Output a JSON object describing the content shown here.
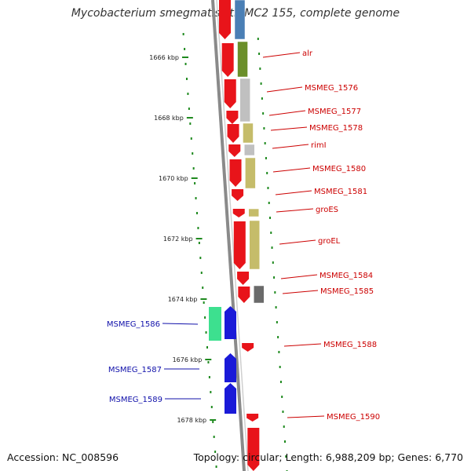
{
  "title": "Mycobacterium smegmatis str. MC2 155, complete genome",
  "accession": "Accession: NC_008596",
  "summary": "Topology: circular; Length: 6,988,209 bp; Genes: 6,770",
  "colors": {
    "forward_gene": "#e8141a",
    "reverse_gene": "#1a1ad8",
    "label_forward": "#cc0000",
    "label_reverse": "#1010aa",
    "backbone": "#8a8a8a",
    "gc_skew": "#1f8a1f",
    "cog_blue": "#4a7fb5",
    "cog_olive": "#6b8f2a",
    "cog_grey": "#c0c0c0",
    "cog_khaki": "#c5bc6a",
    "cog_dark": "#6a6a6a",
    "cog_mint": "#3de08f"
  },
  "ticks": [
    {
      "label": "1666 kbp",
      "kbp": 1666
    },
    {
      "label": "1668 kbp",
      "kbp": 1668
    },
    {
      "label": "1670 kbp",
      "kbp": 1670
    },
    {
      "label": "1672 kbp",
      "kbp": 1672
    },
    {
      "label": "1674 kbp",
      "kbp": 1674
    },
    {
      "label": "1676 kbp",
      "kbp": 1676
    },
    {
      "label": "1678 kbp",
      "kbp": 1678
    }
  ],
  "forward_genes": [
    {
      "name": "alr"
    },
    {
      "name": "MSMEG_1576"
    },
    {
      "name": "MSMEG_1577"
    },
    {
      "name": "MSMEG_1578"
    },
    {
      "name": "rimI"
    },
    {
      "name": "MSMEG_1580"
    },
    {
      "name": "MSMEG_1581"
    },
    {
      "name": "groES"
    },
    {
      "name": "groEL"
    },
    {
      "name": "MSMEG_1584"
    },
    {
      "name": "MSMEG_1585"
    },
    {
      "name": "MSMEG_1588"
    },
    {
      "name": "MSMEG_1590"
    }
  ],
  "reverse_genes": [
    {
      "name": "MSMEG_1586"
    },
    {
      "name": "MSMEG_1587"
    },
    {
      "name": "MSMEG_1589"
    }
  ]
}
